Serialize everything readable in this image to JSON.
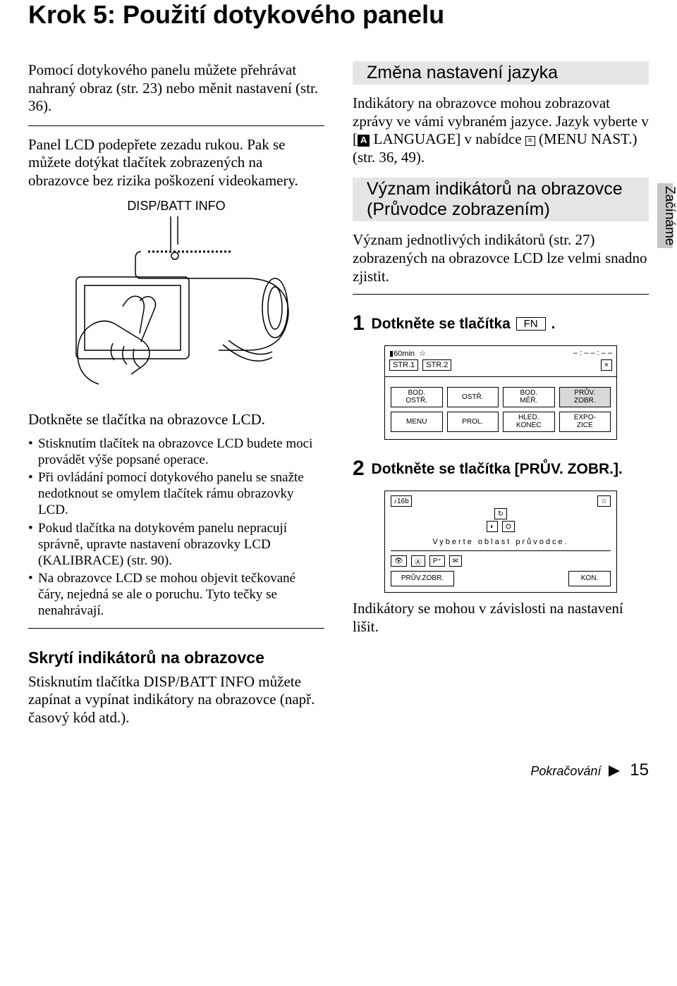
{
  "title": "Krok 5: Použití dotykového panelu",
  "sideTab": "Začínáme",
  "left": {
    "intro": "Pomocí dotykového panelu můžete přehrávat nahraný obraz (str. 23) nebo měnit nastavení (str. 36).",
    "afterHr": "Panel LCD podepřete zezadu rukou. Pak se můžete dotýkat tlačítek zobrazených na obrazovce bez rizika poškození videokamery.",
    "dispLabel": "DISP/BATT INFO",
    "underFig": "Dotkněte se tlačítka na obrazovce LCD.",
    "bullets": [
      "Stisknutím tlačítek na obrazovce LCD budete moci provádět výše popsané operace.",
      "Při ovládání pomocí dotykového panelu se snažte nedotknout se omylem tlačítek rámu obrazovky LCD.",
      "Pokud tlačítka na dotykovém panelu nepracují správně, upravte nastavení obrazovky LCD (KALIBRACE) (str. 90).",
      "Na obrazovce LCD se mohou objevit tečkované čáry, nejedná se ale o poruchu. Tyto tečky se nenahrávají."
    ],
    "hideH": "Skrytí indikátorů na obrazovce",
    "hideBody": "Stisknutím tlačítka DISP/BATT INFO můžete zapínat a vypínat indikátory na obrazovce (např. časový kód atd.)."
  },
  "right": {
    "langH": "Změna nastavení jazyka",
    "langBodyA": "Indikátory na obrazovce mohou zobrazovat zprávy ve vámi vybraném jazyce. Jazyk vyberte v [",
    "langBodyB": " LANGUAGE] v nabídce ",
    "langBodyC": " (MENU NAST.) (str. 36, 49).",
    "meaningH": "Význam indikátorů na obrazovce (Průvodce zobrazením)",
    "meaningBody": "Význam jednotlivých indikátorů (str. 27) zobrazených na obrazovce LCD lze velmi snadno zjistit.",
    "step1_pre": "Dotkněte se tlačítka ",
    "step1_post": ".",
    "fn": "FN",
    "screen1": {
      "topLeft": "60min",
      "topRight": "– : – – : – –",
      "str1": "STR.1",
      "str2": "STR.2",
      "x": "×",
      "row1": [
        "BOD.\nOSTŘ.",
        "OSTŘ.",
        "BOD.\nMĚŘ.",
        "PRŮV.\nZOBR."
      ],
      "row2": [
        "MENU",
        "PROL.",
        "HLED.\nKONEC",
        "EXPO-\nZICE"
      ]
    },
    "step2": "Dotkněte se tlačítka [PRŮV. ZOBR.].",
    "screen2": {
      "tape": "♪16b",
      "caption": "Vyberte oblast průvodce.",
      "btnLeft": "PRŮV.ZOBR.",
      "btnRight": "KON."
    },
    "afterScreens": "Indikátory se mohou v závislosti na nastavení lišit."
  },
  "footer": {
    "cont": "Pokračování",
    "page": "15"
  }
}
